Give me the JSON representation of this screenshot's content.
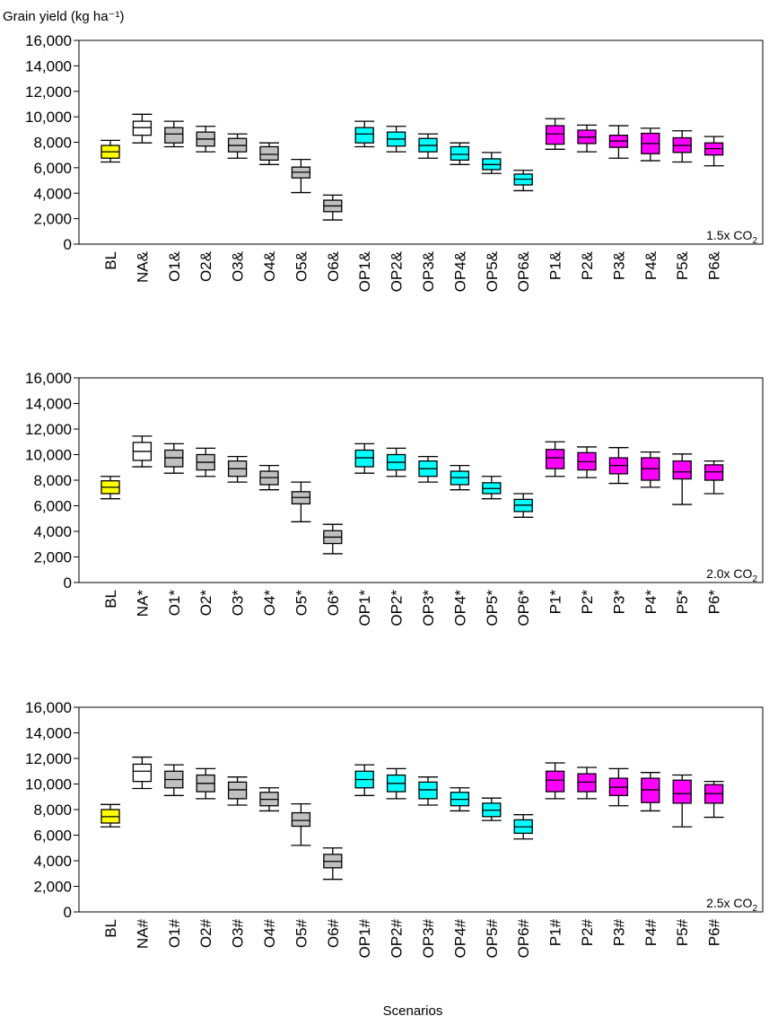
{
  "figure": {
    "y_axis_title": "Grain yield (kg ha⁻¹)",
    "x_axis_title": "Scenarios"
  },
  "colors": {
    "BL": "#ffff00",
    "NA": "#ffffff",
    "O": "#c0c0c0",
    "OP": "#00ffff",
    "P": "#ff00ff",
    "stroke": "#000000"
  },
  "chart_data": [
    {
      "type": "boxplot",
      "panel_label": "1.5x CO",
      "panel_label_sub": "2",
      "ylim": [
        0,
        16000
      ],
      "yticks": [
        0,
        2000,
        4000,
        6000,
        8000,
        10000,
        12000,
        14000,
        16000
      ],
      "ytick_labels": [
        "0",
        "2,000",
        "4,000",
        "6,000",
        "8,000",
        "10,000",
        "12,000",
        "14,000",
        "16,000"
      ],
      "categories": [
        "BL",
        "NA&",
        "O1&",
        "O2&",
        "O3&",
        "O4&",
        "O5&",
        "O6&",
        "OP1&",
        "OP2&",
        "OP3&",
        "OP4&",
        "OP5&",
        "OP6&",
        "P1&",
        "P2&",
        "P3&",
        "P4&",
        "P5&",
        "P6&"
      ],
      "groups": [
        "BL",
        "NA",
        "O",
        "O",
        "O",
        "O",
        "O",
        "O",
        "OP",
        "OP",
        "OP",
        "OP",
        "OP",
        "OP",
        "P",
        "P",
        "P",
        "P",
        "P",
        "P"
      ],
      "boxes": [
        {
          "min": 6450,
          "q1": 6750,
          "median": 7250,
          "q3": 7750,
          "max": 8150
        },
        {
          "min": 7950,
          "q1": 8550,
          "median": 9150,
          "q3": 9650,
          "max": 10200
        },
        {
          "min": 7650,
          "q1": 7950,
          "median": 8650,
          "q3": 9150,
          "max": 9650
        },
        {
          "min": 7250,
          "q1": 7700,
          "median": 8250,
          "q3": 8800,
          "max": 9250
        },
        {
          "min": 6750,
          "q1": 7250,
          "median": 7750,
          "q3": 8300,
          "max": 8650
        },
        {
          "min": 6250,
          "q1": 6600,
          "median": 7050,
          "q3": 7650,
          "max": 7950
        },
        {
          "min": 4050,
          "q1": 5200,
          "median": 5650,
          "q3": 6050,
          "max": 6650
        },
        {
          "min": 1900,
          "q1": 2550,
          "median": 3000,
          "q3": 3450,
          "max": 3850
        },
        {
          "min": 7650,
          "q1": 7950,
          "median": 8650,
          "q3": 9150,
          "max": 9650
        },
        {
          "min": 7250,
          "q1": 7700,
          "median": 8250,
          "q3": 8800,
          "max": 9250
        },
        {
          "min": 6750,
          "q1": 7250,
          "median": 7750,
          "q3": 8300,
          "max": 8650
        },
        {
          "min": 6250,
          "q1": 6600,
          "median": 7050,
          "q3": 7650,
          "max": 7950
        },
        {
          "min": 5550,
          "q1": 5850,
          "median": 6250,
          "q3": 6700,
          "max": 7200
        },
        {
          "min": 4200,
          "q1": 4650,
          "median": 5100,
          "q3": 5500,
          "max": 5800
        },
        {
          "min": 7450,
          "q1": 7850,
          "median": 8650,
          "q3": 9300,
          "max": 9850
        },
        {
          "min": 7250,
          "q1": 7900,
          "median": 8400,
          "q3": 8950,
          "max": 9350
        },
        {
          "min": 6750,
          "q1": 7600,
          "median": 8100,
          "q3": 8550,
          "max": 9300
        },
        {
          "min": 6550,
          "q1": 7100,
          "median": 7900,
          "q3": 8700,
          "max": 9100
        },
        {
          "min": 6450,
          "q1": 7200,
          "median": 7750,
          "q3": 8350,
          "max": 8900
        },
        {
          "min": 6150,
          "q1": 7000,
          "median": 7500,
          "q3": 7950,
          "max": 8450
        }
      ]
    },
    {
      "type": "boxplot",
      "panel_label": "2.0x CO",
      "panel_label_sub": "2",
      "ylim": [
        0,
        16000
      ],
      "yticks": [
        0,
        2000,
        4000,
        6000,
        8000,
        10000,
        12000,
        14000,
        16000
      ],
      "ytick_labels": [
        "0",
        "2,000",
        "4,000",
        "6,000",
        "8,000",
        "10,000",
        "12,000",
        "14,000",
        "16,000"
      ],
      "categories": [
        "BL",
        "NA*",
        "O1*",
        "O2*",
        "O3*",
        "O4*",
        "O5*",
        "O6*",
        "OP1*",
        "OP2*",
        "OP3*",
        "OP4*",
        "OP5*",
        "OP6*",
        "P1*",
        "P2*",
        "P3*",
        "P4*",
        "P5*",
        "P6*"
      ],
      "groups": [
        "BL",
        "NA",
        "O",
        "O",
        "O",
        "O",
        "O",
        "O",
        "OP",
        "OP",
        "OP",
        "OP",
        "OP",
        "OP",
        "P",
        "P",
        "P",
        "P",
        "P",
        "P"
      ],
      "boxes": [
        {
          "min": 6550,
          "q1": 6950,
          "median": 7450,
          "q3": 7950,
          "max": 8300
        },
        {
          "min": 9050,
          "q1": 9550,
          "median": 10250,
          "q3": 10950,
          "max": 11450
        },
        {
          "min": 8550,
          "q1": 9050,
          "median": 9750,
          "q3": 10350,
          "max": 10850
        },
        {
          "min": 8300,
          "q1": 8800,
          "median": 9400,
          "q3": 10000,
          "max": 10500
        },
        {
          "min": 7850,
          "q1": 8300,
          "median": 8900,
          "q3": 9500,
          "max": 9850
        },
        {
          "min": 7250,
          "q1": 7650,
          "median": 8200,
          "q3": 8700,
          "max": 9150
        },
        {
          "min": 4750,
          "q1": 6150,
          "median": 6650,
          "q3": 7100,
          "max": 7850
        },
        {
          "min": 2250,
          "q1": 3050,
          "median": 3550,
          "q3": 4050,
          "max": 4550
        },
        {
          "min": 8550,
          "q1": 9050,
          "median": 9750,
          "q3": 10350,
          "max": 10850
        },
        {
          "min": 8300,
          "q1": 8800,
          "median": 9400,
          "q3": 10000,
          "max": 10500
        },
        {
          "min": 7850,
          "q1": 8300,
          "median": 8900,
          "q3": 9500,
          "max": 9850
        },
        {
          "min": 7250,
          "q1": 7650,
          "median": 8200,
          "q3": 8700,
          "max": 9150
        },
        {
          "min": 6550,
          "q1": 6950,
          "median": 7350,
          "q3": 7800,
          "max": 8300
        },
        {
          "min": 5100,
          "q1": 5550,
          "median": 6050,
          "q3": 6500,
          "max": 6950
        },
        {
          "min": 8300,
          "q1": 8900,
          "median": 9750,
          "q3": 10400,
          "max": 11000
        },
        {
          "min": 8200,
          "q1": 8800,
          "median": 9450,
          "q3": 10150,
          "max": 10600
        },
        {
          "min": 7750,
          "q1": 8500,
          "median": 9150,
          "q3": 9750,
          "max": 10550
        },
        {
          "min": 7450,
          "q1": 8000,
          "median": 8900,
          "q3": 9750,
          "max": 10200
        },
        {
          "min": 6100,
          "q1": 8100,
          "median": 8650,
          "q3": 9500,
          "max": 10050
        },
        {
          "min": 6950,
          "q1": 8000,
          "median": 8650,
          "q3": 9200,
          "max": 9500
        }
      ]
    },
    {
      "type": "boxplot",
      "panel_label": "2.5x CO",
      "panel_label_sub": "2",
      "ylim": [
        0,
        16000
      ],
      "yticks": [
        0,
        2000,
        4000,
        6000,
        8000,
        10000,
        12000,
        14000,
        16000
      ],
      "ytick_labels": [
        "0",
        "2,000",
        "4,000",
        "6,000",
        "8,000",
        "10,000",
        "12,000",
        "14,000",
        "16,000"
      ],
      "categories": [
        "BL",
        "NA#",
        "O1#",
        "O2#",
        "O3#",
        "O4#",
        "O5#",
        "O6#",
        "OP1#",
        "OP2#",
        "OP3#",
        "OP4#",
        "OP5#",
        "OP6#",
        "P1#",
        "P2#",
        "P3#",
        "P4#",
        "P5#",
        "P6#"
      ],
      "groups": [
        "BL",
        "NA",
        "O",
        "O",
        "O",
        "O",
        "O",
        "O",
        "OP",
        "OP",
        "OP",
        "OP",
        "OP",
        "OP",
        "P",
        "P",
        "P",
        "P",
        "P",
        "P"
      ],
      "boxes": [
        {
          "min": 6650,
          "q1": 6950,
          "median": 7450,
          "q3": 8000,
          "max": 8400
        },
        {
          "min": 9650,
          "q1": 10200,
          "median": 11000,
          "q3": 11550,
          "max": 12100
        },
        {
          "min": 9100,
          "q1": 9700,
          "median": 10350,
          "q3": 11000,
          "max": 11500
        },
        {
          "min": 8850,
          "q1": 9400,
          "median": 10050,
          "q3": 10700,
          "max": 11200
        },
        {
          "min": 8350,
          "q1": 8850,
          "median": 9550,
          "q3": 10150,
          "max": 10550
        },
        {
          "min": 7900,
          "q1": 8300,
          "median": 8800,
          "q3": 9350,
          "max": 9700
        },
        {
          "min": 5200,
          "q1": 6700,
          "median": 7150,
          "q3": 7750,
          "max": 8450
        },
        {
          "min": 2550,
          "q1": 3450,
          "median": 3950,
          "q3": 4500,
          "max": 5000
        },
        {
          "min": 9100,
          "q1": 9700,
          "median": 10350,
          "q3": 11000,
          "max": 11500
        },
        {
          "min": 8850,
          "q1": 9400,
          "median": 10050,
          "q3": 10700,
          "max": 11200
        },
        {
          "min": 8350,
          "q1": 8850,
          "median": 9550,
          "q3": 10150,
          "max": 10550
        },
        {
          "min": 7900,
          "q1": 8300,
          "median": 8800,
          "q3": 9350,
          "max": 9700
        },
        {
          "min": 7150,
          "q1": 7450,
          "median": 7950,
          "q3": 8500,
          "max": 8900
        },
        {
          "min": 5700,
          "q1": 6150,
          "median": 6650,
          "q3": 7200,
          "max": 7600
        },
        {
          "min": 8850,
          "q1": 9400,
          "median": 10300,
          "q3": 11000,
          "max": 11650
        },
        {
          "min": 8850,
          "q1": 9400,
          "median": 10150,
          "q3": 10800,
          "max": 11300
        },
        {
          "min": 8300,
          "q1": 9100,
          "median": 9750,
          "q3": 10450,
          "max": 11200
        },
        {
          "min": 7900,
          "q1": 8550,
          "median": 9550,
          "q3": 10450,
          "max": 10900
        },
        {
          "min": 6650,
          "q1": 8500,
          "median": 9250,
          "q3": 10300,
          "max": 10700
        },
        {
          "min": 7400,
          "q1": 8500,
          "median": 9250,
          "q3": 9950,
          "max": 10200
        }
      ]
    }
  ]
}
